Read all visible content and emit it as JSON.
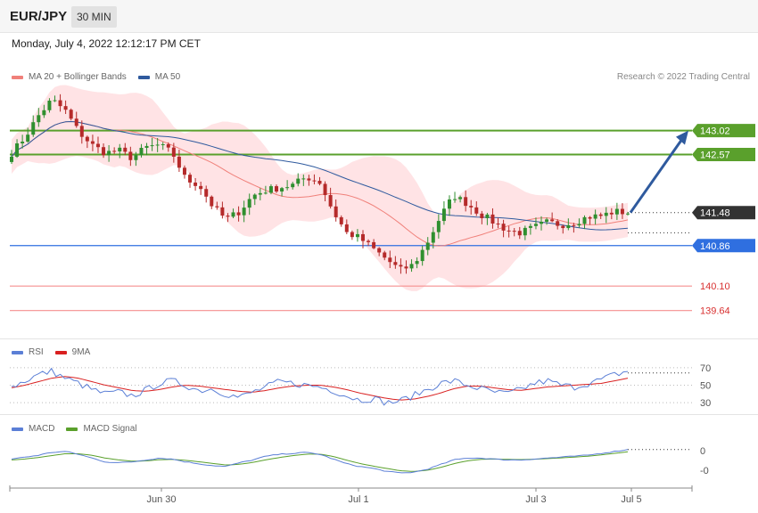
{
  "header": {
    "symbol": "EUR/JPY",
    "interval": "30 MIN"
  },
  "datetime": "Monday, July 4, 2022 12:12:17 PM CET",
  "credit": "Research © 2022 Trading Central",
  "colors": {
    "ma20": "#f0807a",
    "ma50": "#2f5a9e",
    "band_fill": "#ffd9dc",
    "resistance": "#5aa02c",
    "pivot": "#2f6fe0",
    "support": "#f58f8f",
    "candle_up": "#2f8f2f",
    "candle_down": "#b52a2a",
    "current_price": "#333333",
    "rsi": "#5b7fd6",
    "rsi_ma": "#d92020",
    "macd": "#5b7fd6",
    "macd_signal": "#5aa02c"
  },
  "main_legend": [
    {
      "label": "MA 20 + Bollinger Bands",
      "color": "#f0807a"
    },
    {
      "label": "MA 50",
      "color": "#2f5a9e"
    }
  ],
  "rsi_legend": [
    {
      "label": "RSI",
      "color": "#5b7fd6"
    },
    {
      "label": "9MA",
      "color": "#d92020"
    }
  ],
  "macd_legend": [
    {
      "label": "MACD",
      "color": "#5b7fd6"
    },
    {
      "label": "MACD Signal",
      "color": "#5aa02c"
    }
  ],
  "chart_data": [
    {
      "type": "candlestick",
      "symbol": "EUR/JPY",
      "interval": "30 MIN",
      "ylim": [
        139.2,
        143.8
      ],
      "levels": [
        {
          "value": 143.02,
          "label": "143.02",
          "kind": "resistance"
        },
        {
          "value": 142.57,
          "label": "142.57",
          "kind": "resistance"
        },
        {
          "value": 141.48,
          "label": "141.48",
          "kind": "current_price"
        },
        {
          "value": 140.86,
          "label": "140.86",
          "kind": "pivot"
        },
        {
          "value": 140.1,
          "label": "140.10",
          "kind": "support"
        },
        {
          "value": 139.64,
          "label": "139.64",
          "kind": "support"
        }
      ],
      "ma50_end": 141.1,
      "forecast_arrow": {
        "from": 141.48,
        "to": 143.02
      },
      "close_path": [
        142.6,
        142.9,
        143.3,
        143.6,
        143.4,
        143.0,
        142.75,
        142.6,
        142.65,
        142.5,
        142.7,
        142.75,
        142.6,
        142.1,
        142.0,
        141.6,
        141.35,
        141.5,
        141.8,
        141.9,
        141.95,
        142.0,
        142.15,
        142.05,
        141.5,
        141.1,
        141.0,
        140.8,
        140.6,
        140.4,
        140.5,
        140.9,
        141.4,
        141.8,
        141.65,
        141.45,
        141.3,
        141.15,
        141.1,
        141.2,
        141.3,
        141.25,
        141.3,
        141.4,
        141.42,
        141.5,
        141.48
      ],
      "x_ticks": [
        "Jun 30",
        "Jul 1",
        "Jul 3",
        "Jul 5"
      ]
    },
    {
      "type": "line",
      "name": "RSI",
      "ylim": [
        20,
        80
      ],
      "y_ticks": [
        "70",
        "50",
        "30"
      ],
      "series": [
        {
          "name": "RSI",
          "values": [
            48,
            55,
            62,
            66,
            58,
            52,
            45,
            40,
            42,
            38,
            44,
            52,
            55,
            50,
            44,
            46,
            40,
            36,
            42,
            48,
            54,
            52,
            50,
            48,
            44,
            38,
            33,
            35,
            30,
            32,
            38,
            45,
            52,
            55,
            50,
            46,
            42,
            40,
            45,
            52,
            55,
            50,
            48,
            52,
            56,
            62,
            66
          ]
        },
        {
          "name": "9MA",
          "values": [
            47,
            50,
            54,
            58,
            60,
            58,
            54,
            50,
            47,
            44,
            43,
            45,
            48,
            50,
            49,
            47,
            45,
            43,
            42,
            44,
            47,
            49,
            50,
            50,
            48,
            45,
            41,
            38,
            35,
            33,
            34,
            37,
            41,
            46,
            49,
            49,
            47,
            45,
            44,
            46,
            48,
            49,
            50,
            51,
            52,
            55,
            58
          ]
        }
      ]
    },
    {
      "type": "line",
      "name": "MACD",
      "y_ticks": [
        "0",
        "-0"
      ],
      "series": [
        {
          "name": "MACD",
          "values": [
            0.1,
            0.2,
            0.3,
            0.45,
            0.5,
            0.35,
            0.15,
            -0.05,
            -0.1,
            -0.05,
            0.05,
            0.15,
            0.1,
            -0.05,
            -0.15,
            -0.25,
            -0.3,
            -0.1,
            0.05,
            0.25,
            0.35,
            0.4,
            0.45,
            0.35,
            0.1,
            -0.15,
            -0.3,
            -0.4,
            -0.55,
            -0.65,
            -0.6,
            -0.45,
            -0.2,
            0.05,
            0.15,
            0.15,
            0.1,
            0.05,
            0.05,
            0.1,
            0.15,
            0.2,
            0.25,
            0.3,
            0.4,
            0.5,
            0.6
          ]
        },
        {
          "name": "MACD Signal",
          "values": [
            0.05,
            0.1,
            0.18,
            0.28,
            0.38,
            0.38,
            0.3,
            0.15,
            0.05,
            -0.02,
            0.0,
            0.06,
            0.08,
            0.03,
            -0.05,
            -0.13,
            -0.22,
            -0.18,
            -0.08,
            0.06,
            0.18,
            0.28,
            0.36,
            0.36,
            0.24,
            0.04,
            -0.14,
            -0.28,
            -0.4,
            -0.52,
            -0.56,
            -0.5,
            -0.35,
            -0.15,
            0.0,
            0.08,
            0.1,
            0.08,
            0.07,
            0.09,
            0.12,
            0.16,
            0.2,
            0.25,
            0.32,
            0.4,
            0.48
          ]
        }
      ]
    }
  ]
}
